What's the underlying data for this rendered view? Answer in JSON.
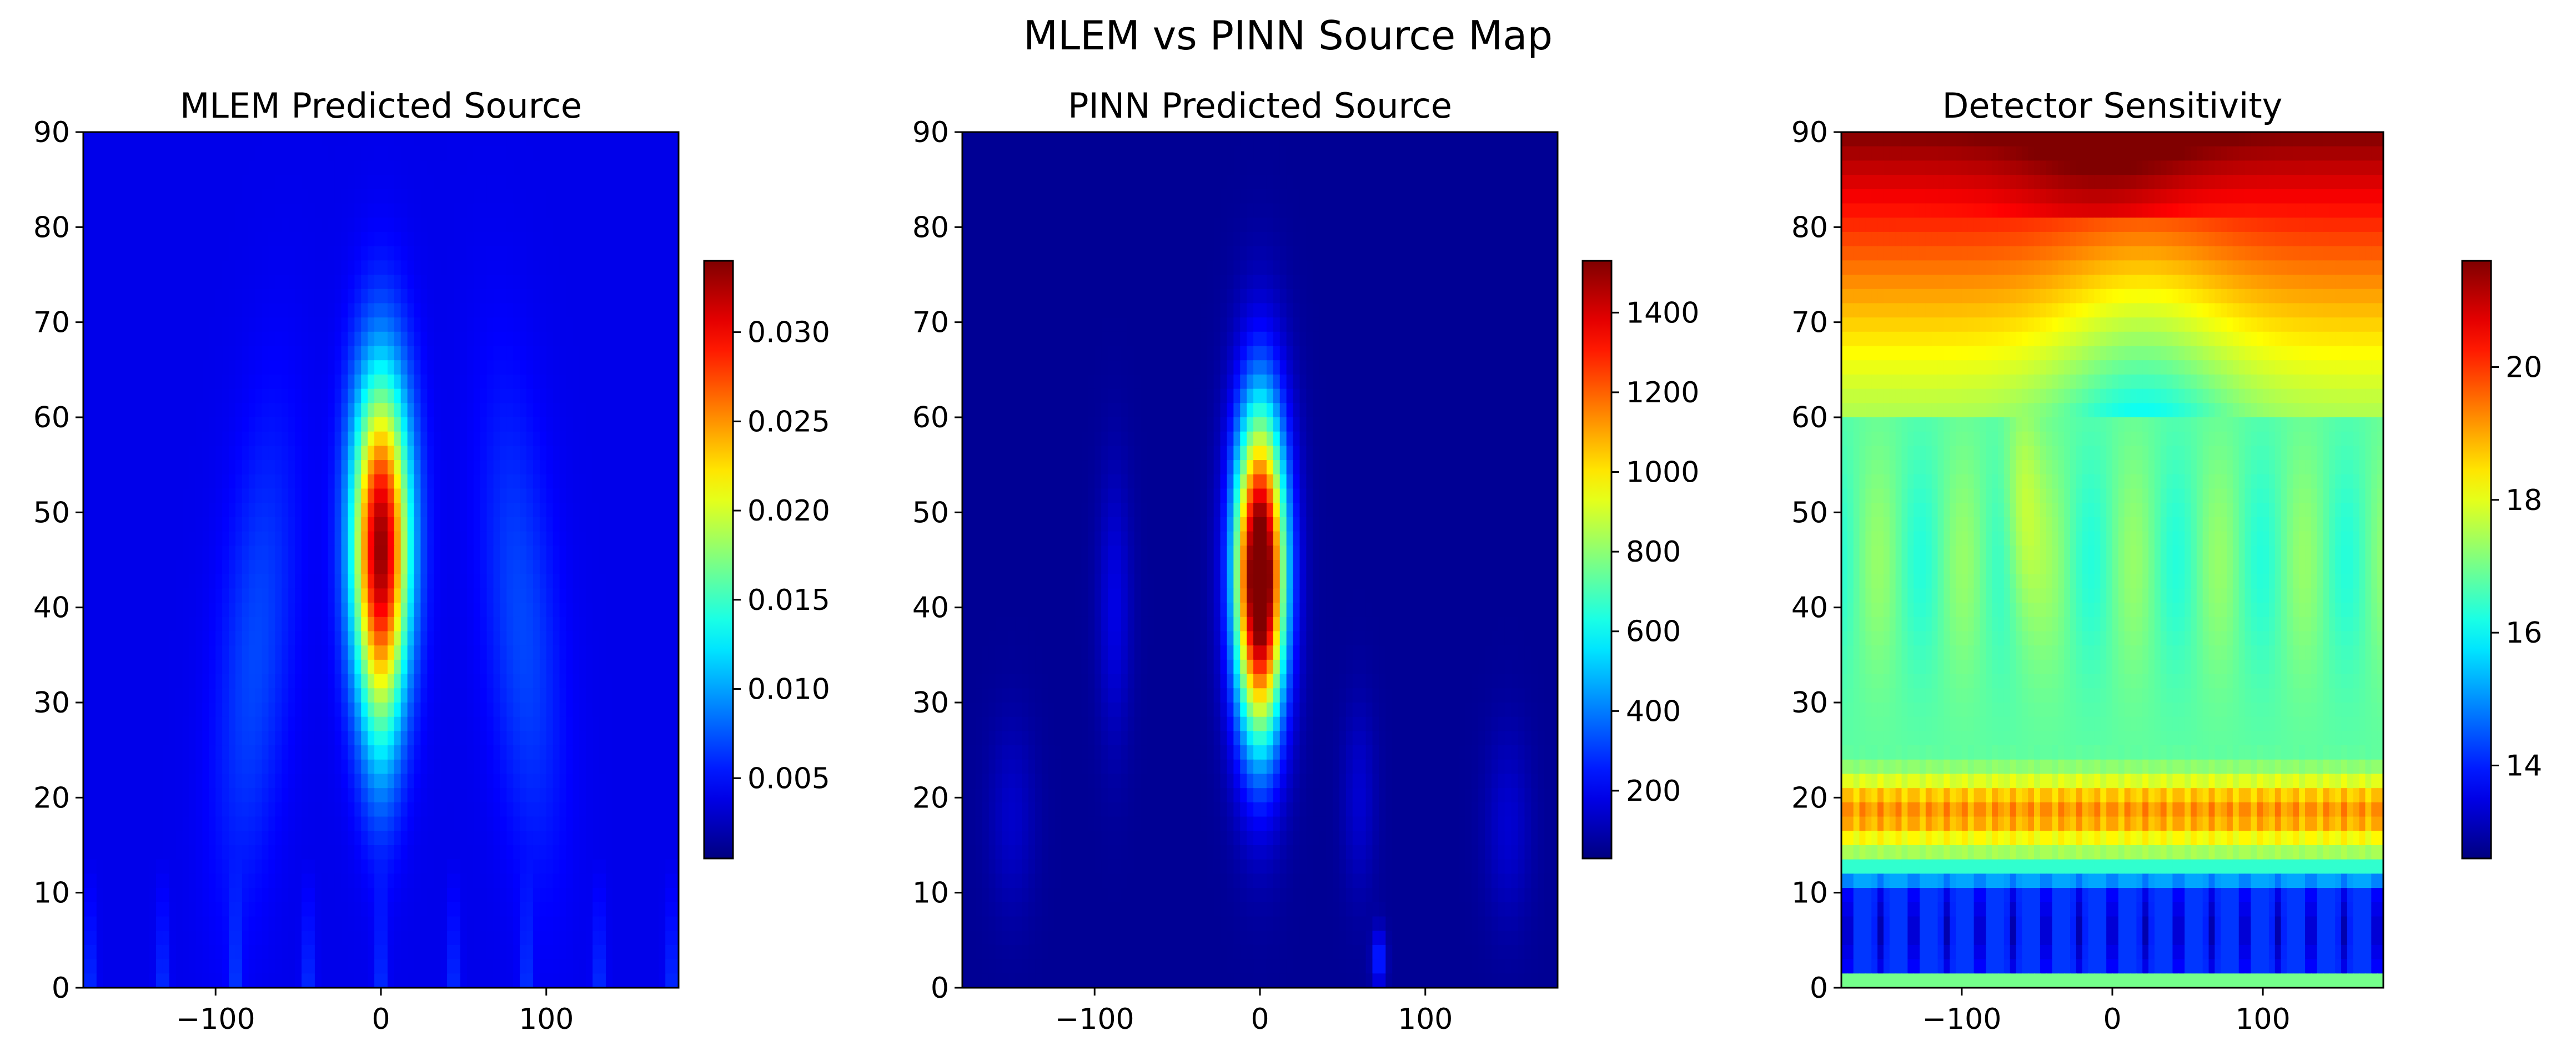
{
  "figure": {
    "title": "MLEM vs PINN Source Map"
  },
  "chart_data": [
    {
      "type": "heatmap",
      "title": "MLEM Predicted Source",
      "xlabel": "",
      "ylabel": "",
      "xlim": [
        -180,
        180
      ],
      "ylim": [
        0,
        90
      ],
      "x_ticks": [
        -100,
        0,
        100
      ],
      "x_tick_labels": [
        "−100",
        "0",
        "100"
      ],
      "y_ticks": [
        0,
        10,
        20,
        30,
        40,
        50,
        60,
        70,
        80,
        90
      ],
      "y_tick_labels": [
        "0",
        "10",
        "20",
        "30",
        "40",
        "50",
        "60",
        "70",
        "80",
        "90"
      ],
      "colormap": "jet",
      "colorbar": {
        "range": [
          0.0005,
          0.034
        ],
        "ticks": [
          0.005,
          0.01,
          0.015,
          0.02,
          0.025,
          0.03
        ],
        "tick_labels": [
          "0.005",
          "0.010",
          "0.015",
          "0.020",
          "0.025",
          "0.030"
        ]
      },
      "features": {
        "background_level": 0.004,
        "peak": {
          "x": 0,
          "y": 47,
          "value": 0.034,
          "x_halfwidth": 12,
          "y_halfwidth": 12
        },
        "arcs": "faint wedge-shaped bands from the bottom corners toward the peak",
        "bottom_stripes": "faint vertical streaks for y < 12"
      }
    },
    {
      "type": "heatmap",
      "title": "PINN Predicted Source",
      "xlabel": "",
      "ylabel": "",
      "xlim": [
        -180,
        180
      ],
      "ylim": [
        0,
        90
      ],
      "x_ticks": [
        -100,
        0,
        100
      ],
      "x_tick_labels": [
        "−100",
        "0",
        "100"
      ],
      "y_ticks": [
        0,
        10,
        20,
        30,
        40,
        50,
        60,
        70,
        80,
        90
      ],
      "y_tick_labels": [
        "0",
        "10",
        "20",
        "30",
        "40",
        "50",
        "60",
        "70",
        "80",
        "90"
      ],
      "colormap": "jet",
      "colorbar": {
        "range": [
          30,
          1530
        ],
        "ticks": [
          200,
          400,
          600,
          800,
          1000,
          1200,
          1400
        ],
        "tick_labels": [
          "200",
          "400",
          "600",
          "800",
          "1000",
          "1200",
          "1400"
        ]
      },
      "features": {
        "background_level": 60,
        "peak": {
          "x": 0,
          "y": 44,
          "value": 1530,
          "x_halfwidth": 11,
          "y_halfwidth": 11
        },
        "side_lobes": "faint vertical lobes near x = −90 and x = 60 around y = 40",
        "bottom_spot": {
          "x": 72,
          "y": 3
        }
      }
    },
    {
      "type": "heatmap",
      "title": "Detector Sensitivity",
      "xlabel": "",
      "ylabel": "",
      "xlim": [
        -180,
        180
      ],
      "ylim": [
        0,
        90
      ],
      "x_ticks": [
        -100,
        0,
        100
      ],
      "x_tick_labels": [
        "−100",
        "0",
        "100"
      ],
      "y_ticks": [
        0,
        10,
        20,
        30,
        40,
        50,
        60,
        70,
        80,
        90
      ],
      "y_tick_labels": [
        "0",
        "10",
        "20",
        "30",
        "40",
        "50",
        "60",
        "70",
        "80",
        "90"
      ],
      "colormap": "jet",
      "colorbar": {
        "range": [
          12.6,
          21.6
        ],
        "ticks": [
          14,
          16,
          18,
          20
        ],
        "tick_labels": [
          "14",
          "16",
          "18",
          "20"
        ]
      },
      "features": {
        "bottom_band": {
          "y_range": [
            0,
            12
          ],
          "min_value": 12.8,
          "stripe_period_deg": 22
        },
        "mid_band": {
          "y": 18.5,
          "value": 18.8
        },
        "plateau": {
          "y_range": [
            25,
            60
          ],
          "value": 16.8
        },
        "top_band": {
          "y_range": [
            60,
            90
          ],
          "max_value": 21.6,
          "dip_center_x": 0
        }
      }
    }
  ]
}
